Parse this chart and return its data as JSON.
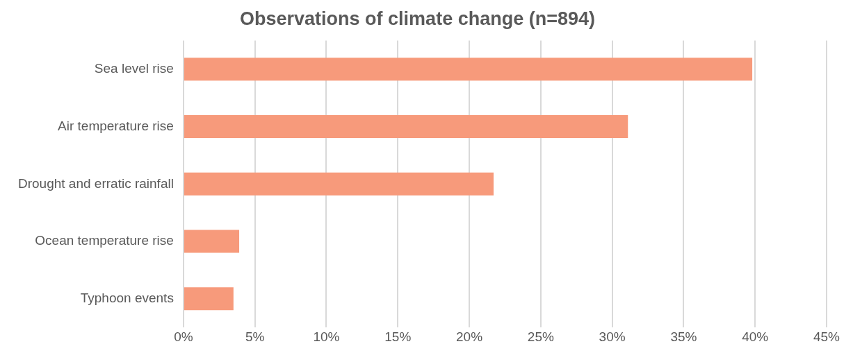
{
  "chart_data": {
    "type": "bar",
    "orientation": "horizontal",
    "title": "Observations of climate change (n=894)",
    "categories": [
      "Sea level rise",
      "Air temperature rise",
      "Drought and erratic rainfall",
      "Ocean temperature rise",
      "Typhoon events"
    ],
    "values": [
      39.8,
      31.1,
      21.7,
      3.9,
      3.5
    ],
    "color": "#f79a7b",
    "xlim": [
      0,
      45
    ],
    "xticks": [
      {
        "value": 0,
        "label": "0%"
      },
      {
        "value": 5,
        "label": "5%"
      },
      {
        "value": 10,
        "label": "10%"
      },
      {
        "value": 15,
        "label": "15%"
      },
      {
        "value": 20,
        "label": "20%"
      },
      {
        "value": 25,
        "label": "25%"
      },
      {
        "value": 30,
        "label": "30%"
      },
      {
        "value": 35,
        "label": "35%"
      },
      {
        "value": 40,
        "label": "40%"
      },
      {
        "value": 45,
        "label": "45%"
      }
    ],
    "grid": "x",
    "legend": false
  }
}
